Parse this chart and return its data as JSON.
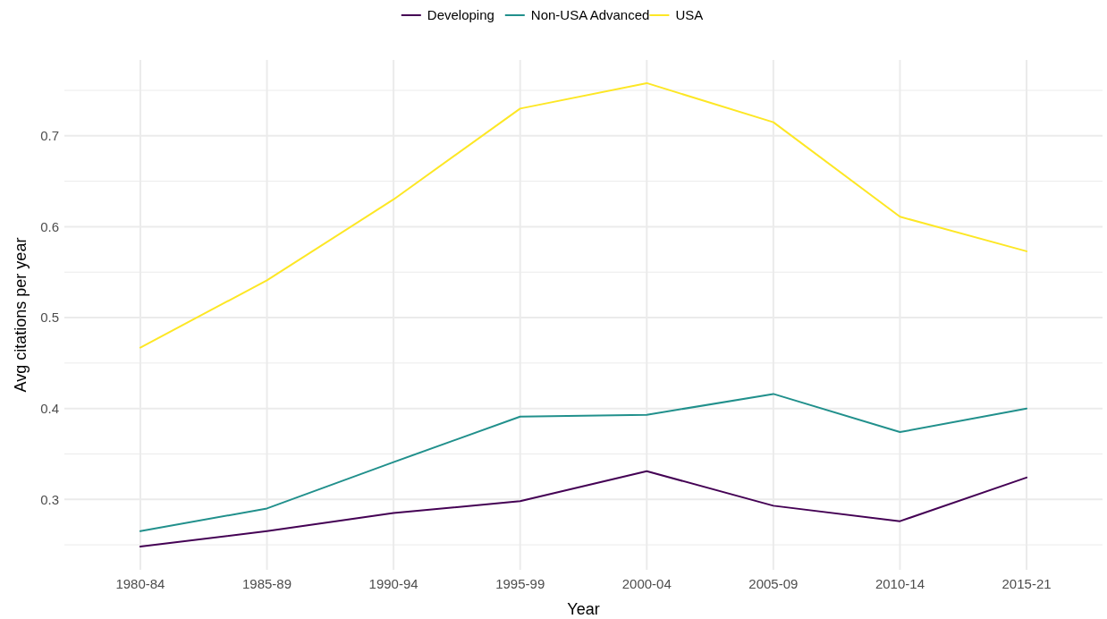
{
  "chart_data": {
    "type": "line",
    "xlabel": "Year",
    "ylabel": "Avg citations per year",
    "categories": [
      "1980-84",
      "1985-89",
      "1990-94",
      "1995-99",
      "2000-04",
      "2005-09",
      "2010-14",
      "2015-21"
    ],
    "series": [
      {
        "name": "Developing",
        "color": "#440154",
        "values": [
          0.248,
          0.265,
          0.285,
          0.298,
          0.331,
          0.293,
          0.276,
          0.324
        ]
      },
      {
        "name": "Non-USA Advanced",
        "color": "#21908c",
        "values": [
          0.265,
          0.29,
          0.341,
          0.391,
          0.393,
          0.416,
          0.374,
          0.4
        ]
      },
      {
        "name": "USA",
        "color": "#fde725",
        "values": [
          0.467,
          0.541,
          0.63,
          0.73,
          0.758,
          0.715,
          0.611,
          0.573
        ]
      }
    ],
    "ylim": [
      0.2225,
      0.7835
    ],
    "yticks": [
      {
        "value": 0.25,
        "label": null
      },
      0.3,
      {
        "value": 0.35,
        "label": null
      },
      0.4,
      {
        "value": 0.45,
        "label": null
      },
      0.5,
      {
        "value": 0.55,
        "label": null
      },
      0.6,
      {
        "value": 0.65,
        "label": null
      },
      0.7,
      {
        "value": 0.75,
        "label": null
      }
    ],
    "grid": true,
    "legend": "top",
    "marker": "none",
    "line_style": "solid"
  }
}
